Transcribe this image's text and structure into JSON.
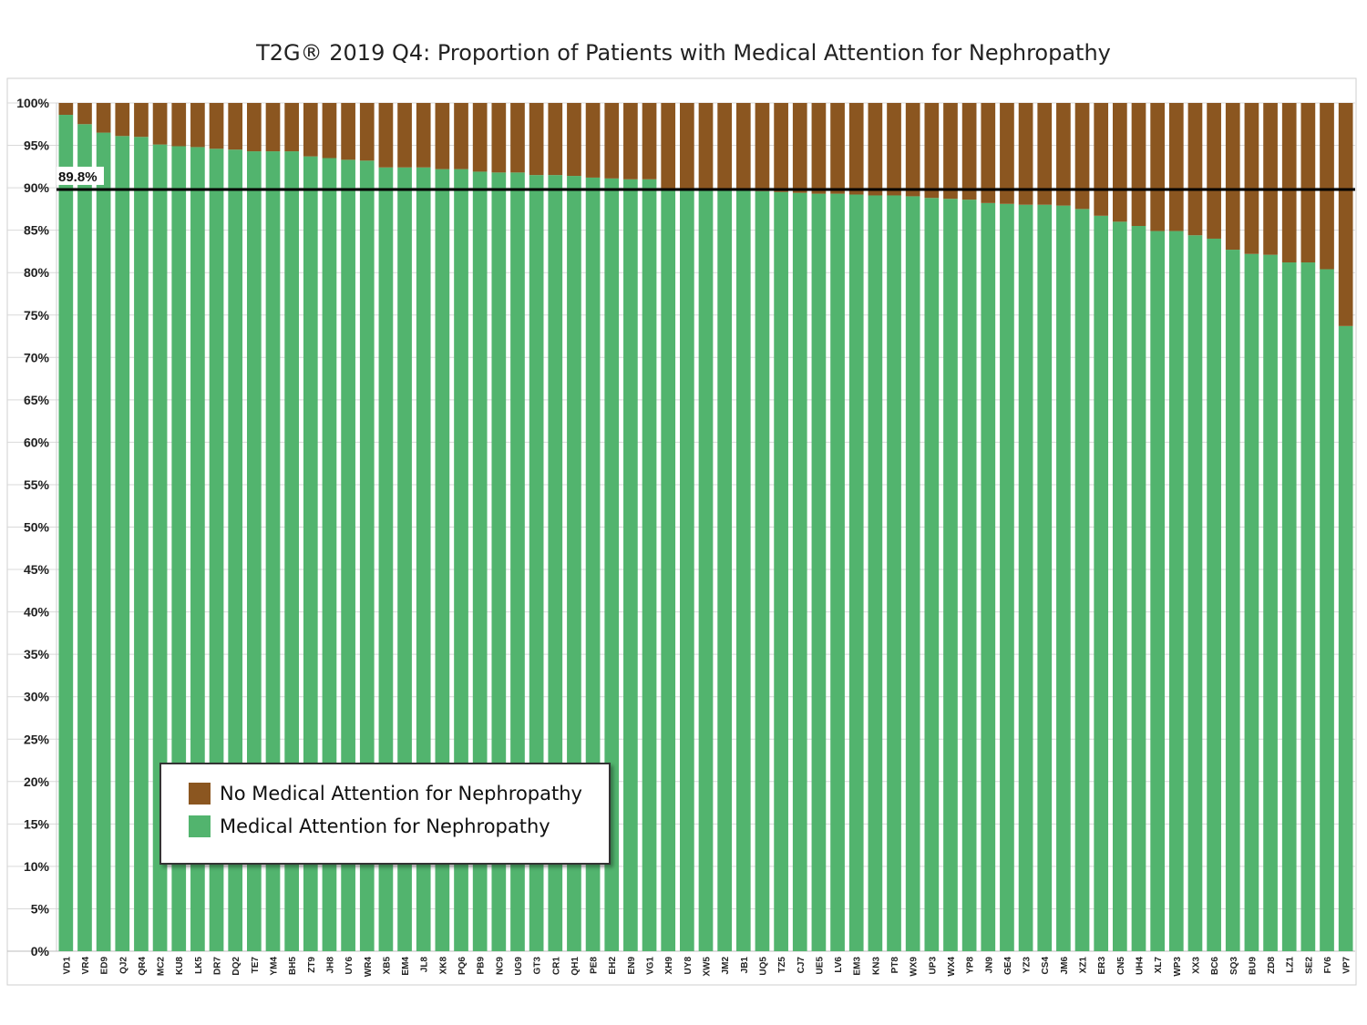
{
  "chart_data": {
    "type": "bar",
    "stacked": true,
    "title": "T2G® 2019 Q4: Proportion of Patients with Medical Attention for Nephropathy",
    "xlabel": "",
    "ylabel": "",
    "ylim": [
      0,
      100
    ],
    "yticks": [
      "0%",
      "5%",
      "10%",
      "15%",
      "20%",
      "25%",
      "30%",
      "35%",
      "40%",
      "45%",
      "50%",
      "55%",
      "60%",
      "65%",
      "70%",
      "75%",
      "80%",
      "85%",
      "90%",
      "95%",
      "100%"
    ],
    "grid": true,
    "legend_position": "bottom-left",
    "categories": [
      "VD1",
      "VR4",
      "ED9",
      "QJ2",
      "QR4",
      "MC2",
      "KU8",
      "LK5",
      "DR7",
      "DQ2",
      "TE7",
      "YM4",
      "BH5",
      "ZT9",
      "JH8",
      "UY6",
      "WR4",
      "XB5",
      "EM4",
      "JL8",
      "XK8",
      "PQ6",
      "PB9",
      "NC9",
      "UG9",
      "GT3",
      "CR1",
      "QH1",
      "PE8",
      "EH2",
      "EN9",
      "VG1",
      "XH9",
      "UY8",
      "XW5",
      "JM2",
      "JB1",
      "UQ5",
      "TZ5",
      "CJ7",
      "UE5",
      "LV6",
      "EM3",
      "KN3",
      "PT8",
      "WX9",
      "UP3",
      "WX4",
      "YP8",
      "JN9",
      "GE4",
      "YZ3",
      "CS4",
      "JM6",
      "XZ1",
      "ER3",
      "CN5",
      "UH4",
      "XL7",
      "WP3",
      "XX3",
      "BC6",
      "SQ3",
      "BU9",
      "ZD8",
      "LZ1",
      "SE2",
      "FV6",
      "VP7"
    ],
    "series": [
      {
        "name": "Medical Attention for Nephropathy",
        "color": "#52b46e",
        "values": [
          98.6,
          97.5,
          96.5,
          96.1,
          96.0,
          95.1,
          94.9,
          94.8,
          94.6,
          94.5,
          94.3,
          94.3,
          94.3,
          93.7,
          93.5,
          93.3,
          93.2,
          92.4,
          92.4,
          92.4,
          92.2,
          92.2,
          91.9,
          91.8,
          91.8,
          91.5,
          91.5,
          91.4,
          91.2,
          91.1,
          91.0,
          91.0,
          89.8,
          89.8,
          89.8,
          89.8,
          89.7,
          89.6,
          89.5,
          89.4,
          89.3,
          89.3,
          89.2,
          89.1,
          89.1,
          89.0,
          88.8,
          88.7,
          88.6,
          88.2,
          88.1,
          88.0,
          88.0,
          87.9,
          87.5,
          86.7,
          86.0,
          85.5,
          84.9,
          84.9,
          84.4,
          84.0,
          82.7,
          82.2,
          82.1,
          81.2,
          81.2,
          80.4,
          73.7
        ]
      },
      {
        "name": "No Medical Attention for Nephropathy",
        "color": "#8b5620",
        "values": [
          1.4,
          2.5,
          3.5,
          3.9,
          4.0,
          4.9,
          5.1,
          5.2,
          5.4,
          5.5,
          5.7,
          5.7,
          5.7,
          6.3,
          6.5,
          6.7,
          6.8,
          7.6,
          7.6,
          7.6,
          7.8,
          7.8,
          8.1,
          8.2,
          8.2,
          8.5,
          8.5,
          8.6,
          8.8,
          8.9,
          9.0,
          9.0,
          10.2,
          10.2,
          10.2,
          10.2,
          10.3,
          10.4,
          10.5,
          10.6,
          10.7,
          10.7,
          10.8,
          10.9,
          10.9,
          11.0,
          11.2,
          11.3,
          11.4,
          11.8,
          11.9,
          12.0,
          12.0,
          12.1,
          12.5,
          13.3,
          14.0,
          14.5,
          15.1,
          15.1,
          15.6,
          16.0,
          17.3,
          17.8,
          17.9,
          18.8,
          18.8,
          19.6,
          26.3
        ]
      }
    ],
    "reference_line": {
      "value": 89.8,
      "label": "89.8%"
    }
  },
  "legend": {
    "items": [
      {
        "label": "No Medical Attention for Nephropathy",
        "color": "#8b5620"
      },
      {
        "label": "Medical Attention for Nephropathy",
        "color": "#52b46e"
      }
    ]
  }
}
